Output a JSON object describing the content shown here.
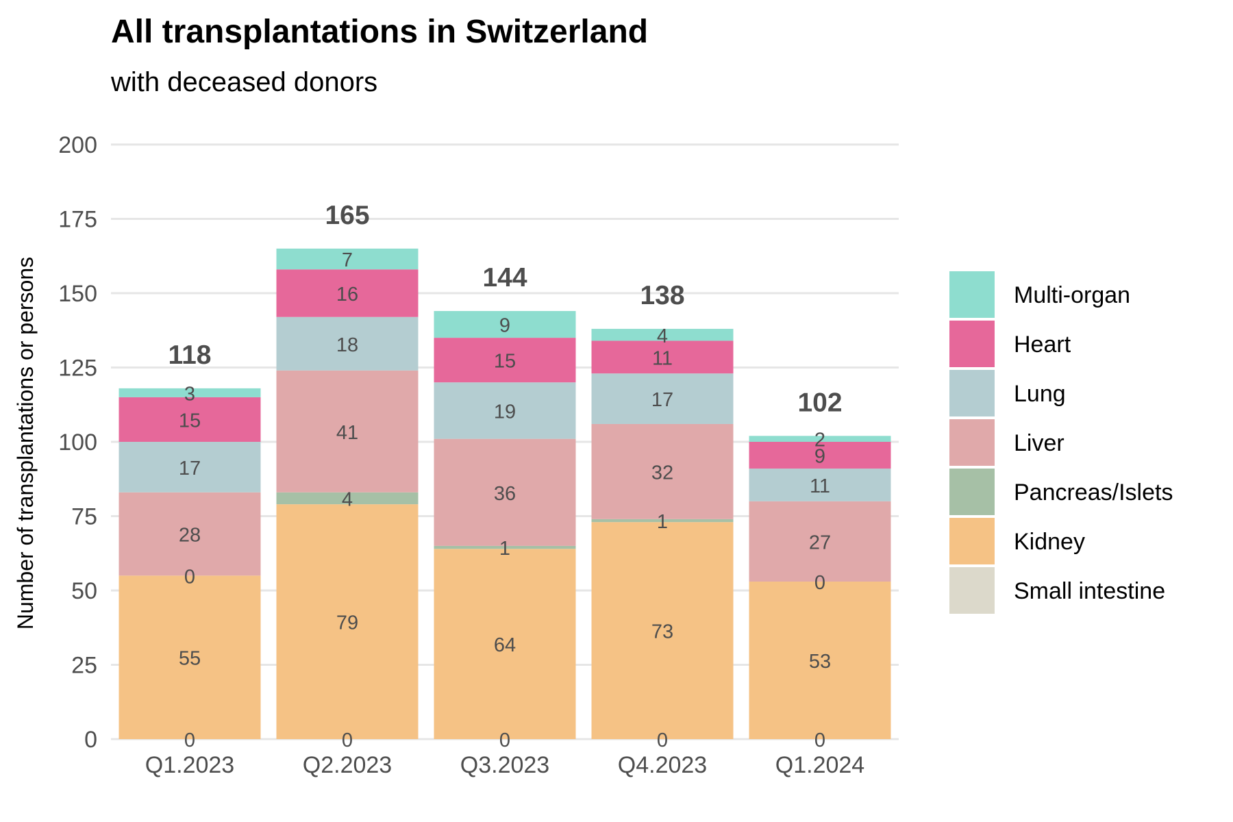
{
  "chart_data": {
    "type": "bar",
    "stacked": true,
    "title": "All transplantations in Switzerland",
    "subtitle": "with deceased donors",
    "xlabel": "",
    "ylabel": "Number of transplantations or persons",
    "ylim": [
      0,
      200
    ],
    "yticks": [
      0,
      25,
      50,
      75,
      100,
      125,
      150,
      175,
      200
    ],
    "grid": true,
    "legend_position": "right",
    "categories": [
      "Q1.2023",
      "Q2.2023",
      "Q3.2023",
      "Q4.2023",
      "Q1.2024"
    ],
    "totals": [
      118,
      165,
      144,
      138,
      102
    ],
    "series": [
      {
        "name": "Small intestine",
        "color": "#dcd9cb",
        "values": [
          0,
          0,
          0,
          0,
          0
        ]
      },
      {
        "name": "Kidney",
        "color": "#f5c285",
        "values": [
          55,
          79,
          64,
          73,
          53
        ]
      },
      {
        "name": "Pancreas/Islets",
        "color": "#a6c0a6",
        "values": [
          0,
          4,
          1,
          1,
          0
        ]
      },
      {
        "name": "Liver",
        "color": "#e0a9aa",
        "values": [
          28,
          41,
          36,
          32,
          27
        ]
      },
      {
        "name": "Lung",
        "color": "#b4cdd1",
        "values": [
          17,
          18,
          19,
          17,
          11
        ]
      },
      {
        "name": "Heart",
        "color": "#e6689a",
        "values": [
          15,
          16,
          15,
          11,
          9
        ]
      },
      {
        "name": "Multi-organ",
        "color": "#8eddcf",
        "values": [
          3,
          7,
          9,
          4,
          2
        ]
      }
    ],
    "legend_order": [
      "Multi-organ",
      "Heart",
      "Lung",
      "Liver",
      "Pancreas/Islets",
      "Kidney",
      "Small intestine"
    ]
  }
}
